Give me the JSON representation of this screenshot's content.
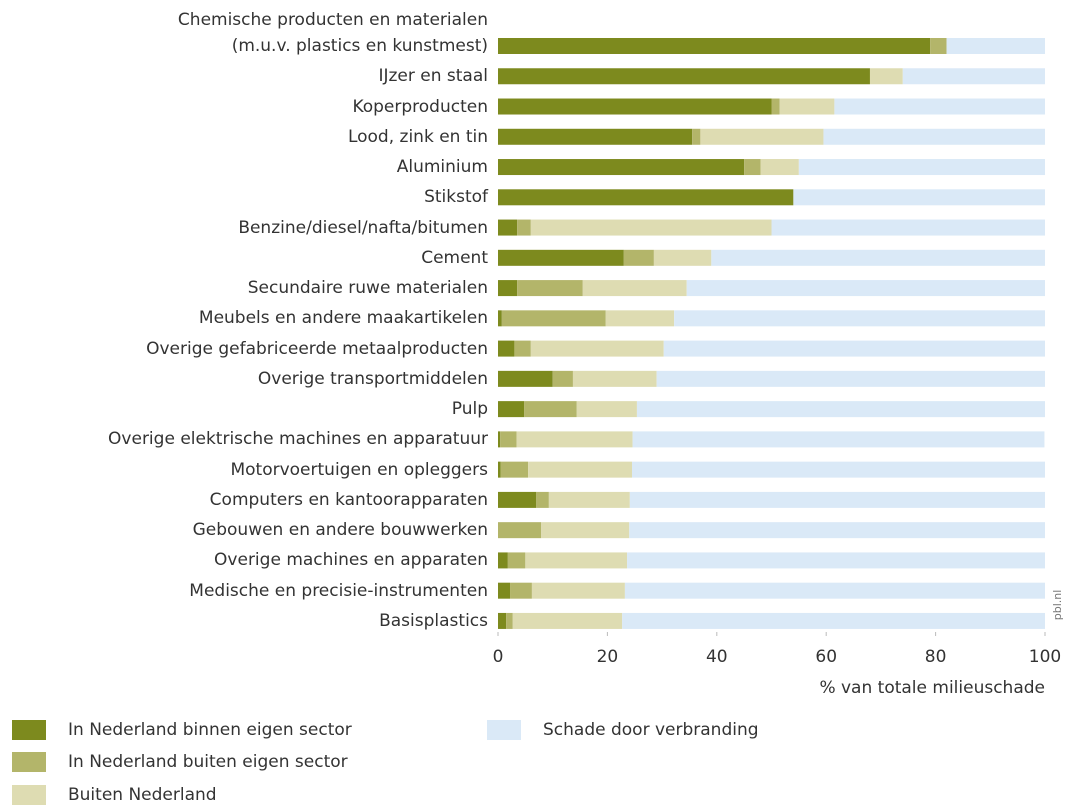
{
  "chart_data": {
    "type": "stacked-barh",
    "categories": [
      "Chemische producten en materialen\n(m.u.v. plastics en kunstmest)",
      "IJzer en staal",
      "Koperproducten",
      "Lood, zink en tin",
      "Aluminium",
      "Stikstof",
      "Benzine/diesel/nafta/bitumen",
      "Cement",
      "Secundaire ruwe materialen",
      "Meubels en andere maakartikelen",
      "Overige gefabriceerde metaalproducten",
      "Overige transportmiddelen",
      "Pulp",
      "Overige elektrische machines en apparatuur",
      "Motorvoertuigen en opleggers",
      "Computers en kantoorapparaten",
      "Gebouwen en andere bouwwerken",
      "Overige machines en apparaten",
      "Medische en precisie-instrumenten",
      "Basisplastics"
    ],
    "series": [
      {
        "name": "In Nederland binnen eigen sector",
        "color": "#7d8a1e",
        "values": [
          79,
          68,
          50,
          35.5,
          45,
          54,
          3.5,
          23,
          3.5,
          0.7,
          3,
          10,
          4.8,
          0.4,
          0.5,
          7,
          0,
          1.8,
          2.2,
          1.5
        ]
      },
      {
        "name": "In Nederland buiten eigen sector",
        "color": "#b3b56a",
        "values": [
          3,
          0,
          1.5,
          1.5,
          3,
          0,
          2.5,
          5.5,
          12,
          19,
          3,
          3.7,
          9.6,
          3,
          5,
          2.3,
          7.9,
          3.2,
          4,
          1.2
        ]
      },
      {
        "name": "Buiten Nederland",
        "color": "#dedcb2",
        "values": [
          0,
          6,
          10,
          22.5,
          7,
          0,
          44,
          10.5,
          19,
          12.5,
          24.3,
          15.3,
          11,
          21.2,
          19,
          14.8,
          16.1,
          18.6,
          17,
          20
        ]
      },
      {
        "name": "Schade door verbranding",
        "color": "#dae9f7",
        "values": [
          18,
          26,
          38.5,
          40.5,
          45,
          46,
          50,
          61,
          65.5,
          67.8,
          69.7,
          71,
          74.6,
          75.3,
          75.5,
          75.9,
          76,
          76.4,
          76.8,
          77.3
        ]
      }
    ],
    "xlim": [
      0,
      100
    ],
    "xticks": [
      0,
      20,
      40,
      60,
      80,
      100
    ],
    "xlabel": "% van totale milieuschade",
    "annotation": "pbl.nl",
    "grid": false
  }
}
